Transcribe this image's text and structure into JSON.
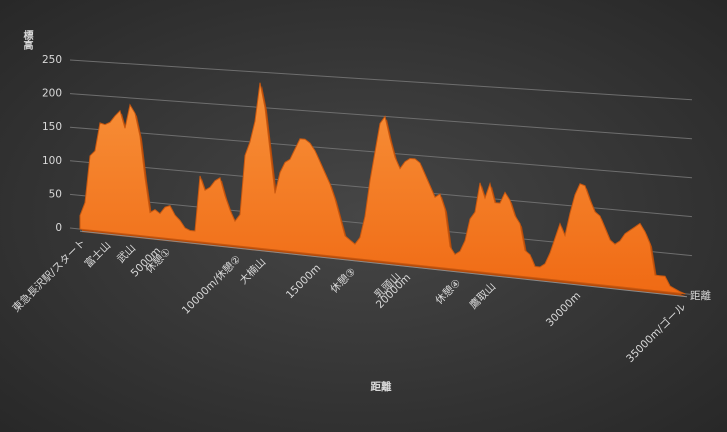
{
  "chart_data": {
    "type": "area3d",
    "y_axis_title": "標高",
    "x_axis_title": "距離",
    "series_name": "距離",
    "color": "#f07a22",
    "grid": true,
    "ylim": [
      0,
      250
    ],
    "yticks": [
      0,
      50,
      100,
      150,
      200,
      250
    ],
    "categories": [
      "東急長沢駅/スタート",
      null,
      null,
      null,
      null,
      "富士山",
      null,
      null,
      null,
      null,
      "武山",
      null,
      null,
      null,
      null,
      "5000m",
      null,
      "休憩①",
      null,
      null,
      null,
      null,
      null,
      null,
      null,
      null,
      null,
      null,
      null,
      null,
      null,
      "10000m/休憩②",
      null,
      null,
      null,
      null,
      "大楠山",
      null,
      null,
      null,
      null,
      null,
      null,
      null,
      null,
      null,
      null,
      "15000m",
      null,
      null,
      null,
      null,
      null,
      null,
      "休憩③",
      null,
      null,
      null,
      null,
      null,
      null,
      null,
      null,
      "乳頭山",
      null,
      "20000m",
      null,
      null,
      null,
      null,
      null,
      null,
      null,
      null,
      null,
      "休憩④",
      null,
      null,
      null,
      null,
      null,
      null,
      "鷹取山",
      null,
      null,
      null,
      null,
      null,
      null,
      null,
      null,
      null,
      null,
      null,
      null,
      null,
      null,
      null,
      null,
      "30000m",
      null,
      null,
      null,
      null,
      null,
      null,
      null,
      null,
      null,
      null,
      null,
      null,
      null,
      null,
      null,
      null,
      null,
      null,
      null,
      null,
      "35000m/ゴール",
      null
    ],
    "values": [
      20,
      40,
      110,
      118,
      160,
      158,
      162,
      172,
      180,
      155,
      190,
      178,
      145,
      85,
      35,
      40,
      35,
      45,
      48,
      35,
      28,
      18,
      15,
      15,
      95,
      75,
      80,
      90,
      95,
      70,
      50,
      35,
      45,
      130,
      150,
      180,
      235,
      200,
      140,
      80,
      110,
      125,
      130,
      145,
      160,
      160,
      155,
      145,
      130,
      115,
      100,
      80,
      55,
      30,
      25,
      20,
      30,
      60,
      110,
      150,
      190,
      200,
      170,
      145,
      130,
      140,
      145,
      145,
      140,
      125,
      110,
      95,
      100,
      80,
      30,
      20,
      25,
      40,
      70,
      80,
      120,
      100,
      120,
      95,
      95,
      110,
      100,
      80,
      70,
      35,
      30,
      15,
      15,
      20,
      35,
      55,
      75,
      60,
      90,
      115,
      130,
      128,
      110,
      95,
      90,
      75,
      60,
      55,
      60,
      70,
      75,
      80,
      85,
      75,
      60,
      20,
      20,
      20,
      8,
      5,
      2,
      0
    ]
  }
}
